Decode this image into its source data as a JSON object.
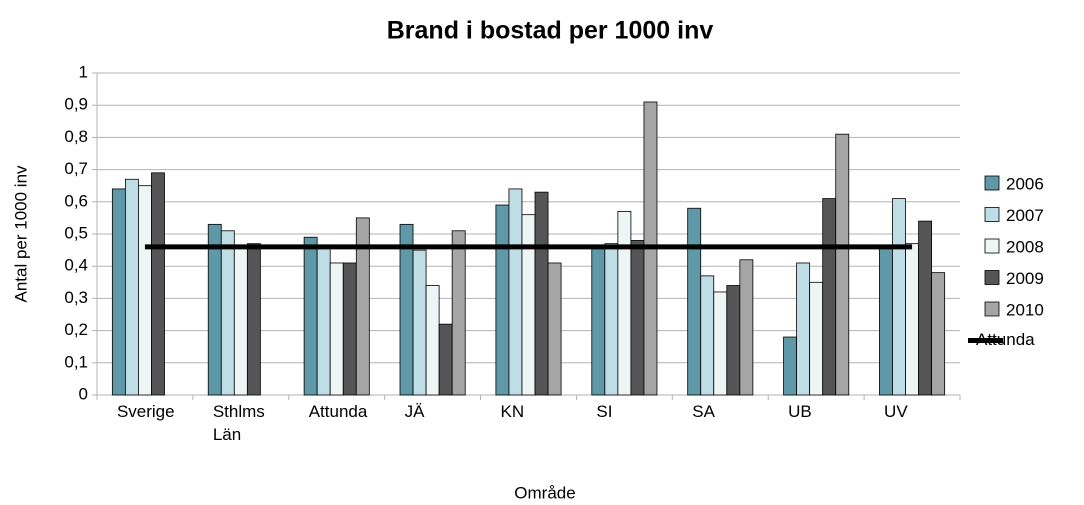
{
  "chart_data": {
    "type": "bar",
    "title": "Brand i bostad per 1000 inv",
    "x_label": "Område",
    "y_label": "Antal per 1000 inv",
    "categories": [
      "Sverige",
      "Sthlms Län",
      "Attunda",
      "JÄ",
      "KN",
      "SI",
      "SA",
      "UB",
      "UV"
    ],
    "series": [
      {
        "name": "2006",
        "color": "#5f98a6",
        "values": [
          0.64,
          0.53,
          0.49,
          0.53,
          0.59,
          0.46,
          0.58,
          0.18,
          0.46
        ]
      },
      {
        "name": "2007",
        "color": "#bfdde4",
        "values": [
          0.67,
          0.51,
          0.46,
          0.45,
          0.64,
          0.47,
          0.37,
          0.41,
          0.61
        ]
      },
      {
        "name": "2008",
        "color": "#eef5f5",
        "values": [
          0.65,
          0.46,
          0.41,
          0.34,
          0.56,
          0.57,
          0.32,
          0.35,
          0.47
        ]
      },
      {
        "name": "2009",
        "color": "#555555",
        "values": [
          0.69,
          0.47,
          0.41,
          0.22,
          0.63,
          0.48,
          0.34,
          0.61,
          0.54
        ]
      },
      {
        "name": "2010",
        "color": "#a5a5a5",
        "values": [
          null,
          null,
          0.55,
          0.51,
          0.41,
          0.91,
          0.42,
          0.81,
          0.38
        ]
      },
      {
        "name": "Attunda",
        "color": "#000000",
        "type": "line",
        "values": [
          0.46,
          0.46,
          0.46,
          0.46,
          0.46,
          0.46,
          0.46,
          0.46,
          0.46
        ]
      }
    ],
    "ylim": [
      0,
      1
    ],
    "yticks": [
      0,
      {
        "value": 0.1,
        "label": "0,1"
      },
      {
        "value": 0.2,
        "label": "0,2"
      },
      {
        "value": 0.3,
        "label": "0,3"
      },
      {
        "value": 0.4,
        "label": "0,4"
      },
      {
        "value": 0.5,
        "label": "0,5"
      },
      {
        "value": 0.6,
        "label": "0,6"
      },
      {
        "value": 0.7,
        "label": "0,7"
      },
      {
        "value": 0.8,
        "label": "0,8"
      },
      {
        "value": 0.9,
        "label": "0,9"
      },
      1
    ],
    "grid": true,
    "legend": "right"
  }
}
